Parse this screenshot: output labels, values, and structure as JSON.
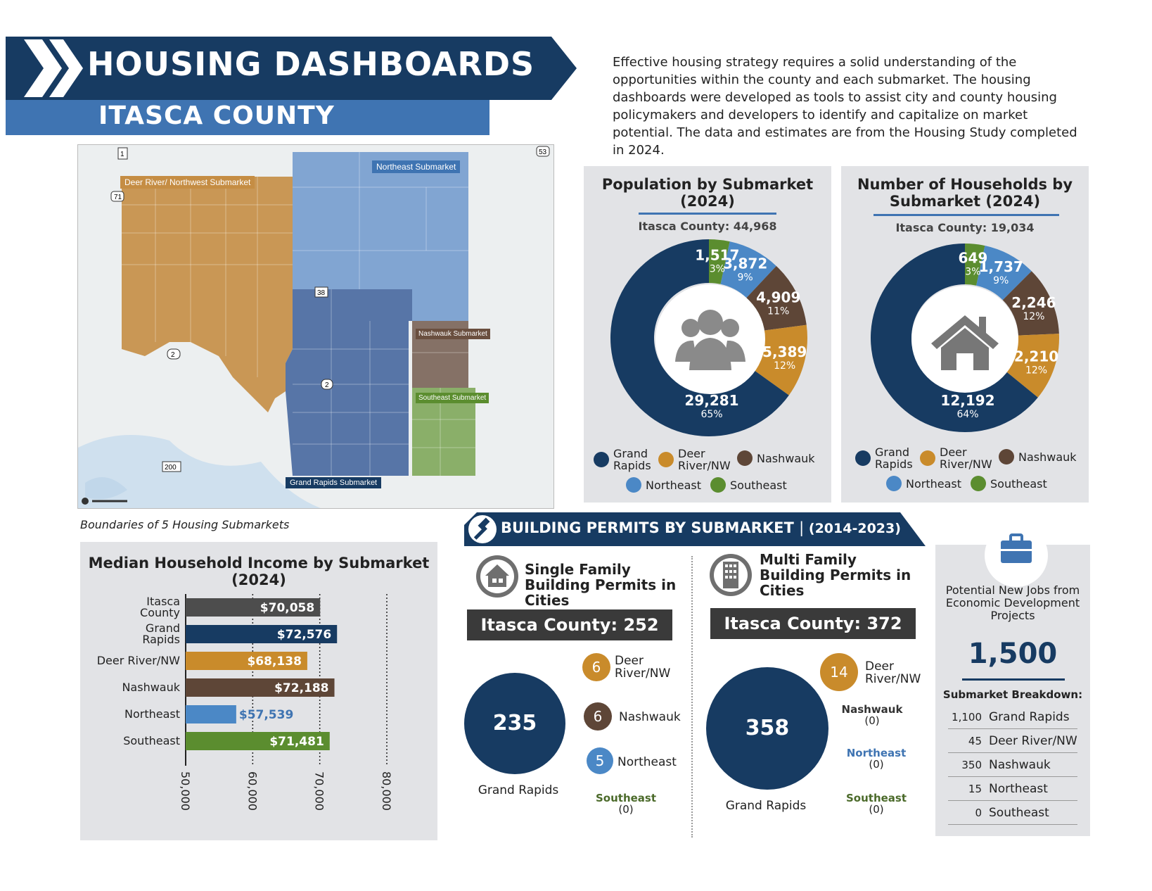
{
  "header": {
    "title": "HOUSING DASHBOARDS",
    "subtitle": "ITASCA COUNTY",
    "intro": "Effective housing strategy requires a solid understanding of the opportunities within the county and each submarket. The housing dashboards were developed as tools to assist city and county housing policymakers and developers to identify and capitalize on market potential. The data and estimates are from the Housing Study completed in 2024."
  },
  "map": {
    "caption": "Boundaries of 5 Housing Submarkets",
    "labels": {
      "deer_river": "Deer River/ Northwest Submarket",
      "northeast": "Northeast Submarket",
      "nashwauk": "Nashwauk Submarket",
      "southeast": "Southeast Submarket",
      "grand_rapids": "Grand Rapids Submarket"
    },
    "route_labels": [
      "1",
      "71",
      "53",
      "38",
      "2",
      "2",
      "200"
    ]
  },
  "colors": {
    "grand_rapids": "#173b62",
    "deer_river": "#c98b2b",
    "nashwauk": "#5e4637",
    "northeast": "#4b88c6",
    "southeast": "#5b8d2f",
    "county": "#4d4d4d",
    "header_dark": "#173b62",
    "header_blue": "#3f74b2"
  },
  "population": {
    "title": "Population by Submarket (2024)",
    "total_label": "Itasca County: 44,968",
    "slices": [
      {
        "key": "grand_rapids",
        "value": "29,281",
        "pct": "65%",
        "share": 65.1
      },
      {
        "key": "deer_river",
        "value": "5,389",
        "pct": "12%",
        "share": 12.0
      },
      {
        "key": "nashwauk",
        "value": "4,909",
        "pct": "11%",
        "share": 10.9
      },
      {
        "key": "northeast",
        "value": "3,872",
        "pct": "9%",
        "share": 8.6
      },
      {
        "key": "southeast",
        "value": "1,517",
        "pct": "3%",
        "share": 3.4
      }
    ],
    "legend": [
      "Grand Rapids",
      "Deer River/NW",
      "Nashwauk",
      "Northeast",
      "Southeast"
    ]
  },
  "households": {
    "title": "Number of Households by Submarket (2024)",
    "total_label": "Itasca County: 19,034",
    "slices": [
      {
        "key": "grand_rapids",
        "value": "12,192",
        "pct": "64%",
        "share": 64.1
      },
      {
        "key": "deer_river",
        "value": "2,210",
        "pct": "12%",
        "share": 11.6
      },
      {
        "key": "nashwauk",
        "value": "2,246",
        "pct": "12%",
        "share": 11.8
      },
      {
        "key": "northeast",
        "value": "1,737",
        "pct": "9%",
        "share": 9.1
      },
      {
        "key": "southeast",
        "value": "649",
        "pct": "3%",
        "share": 3.4
      }
    ],
    "legend": [
      "Grand Rapids",
      "Deer River/NW",
      "Nashwauk",
      "Northeast",
      "Southeast"
    ]
  },
  "chart_data": {
    "type": "bar",
    "title": "Median Household Income by Submarket (2024)",
    "categories": [
      "Itasca County",
      "Grand Rapids",
      "Deer River/NW",
      "Nashwauk",
      "Northeast",
      "Southeast"
    ],
    "values": [
      70058,
      72576,
      68138,
      72188,
      57539,
      71481
    ],
    "value_labels": [
      "$70,058",
      "$72,576",
      "$68,138",
      "$72,188",
      "$57,539",
      "$71,481"
    ],
    "xlim": [
      50000,
      80000
    ],
    "ticks": [
      "50,000",
      "60,000",
      "70,000",
      "80,000"
    ],
    "tick_values": [
      50000,
      60000,
      70000,
      80000
    ],
    "orientation": "horizontal",
    "grid": true
  },
  "permits": {
    "title": "BUILDING PERMITS BY SUBMARKET",
    "years": "(2014-2023)",
    "single": {
      "heading": "Single Family Building Permits in Cities",
      "county": "Itasca County: 252",
      "big_value": "235",
      "big_label": "Grand Rapids",
      "items": [
        {
          "value": "6",
          "label": "Deer River/NW"
        },
        {
          "value": "6",
          "label": "Nashwauk"
        },
        {
          "value": "5",
          "label": "Northeast"
        }
      ],
      "southeast_label": "Southeast",
      "southeast_value": "(0)"
    },
    "multi": {
      "heading": "Multi Family Building Permits in Cities",
      "county": "Itasca County: 372",
      "big_value": "358",
      "big_label": "Grand Rapids",
      "deer_value": "14",
      "deer_label": "Deer River/NW",
      "zeros": [
        {
          "label": "Nashwauk",
          "value": "(0)"
        },
        {
          "label": "Northeast",
          "value": "(0)"
        },
        {
          "label": "Southeast",
          "value": "(0)"
        }
      ]
    }
  },
  "jobs": {
    "label": "Potential New Jobs from Economic Development Projects",
    "value": "1,500",
    "breakdown_title": "Submarket Breakdown:",
    "rows": [
      {
        "n": "1,100",
        "name": "Grand Rapids"
      },
      {
        "n": "45",
        "name": "Deer River/NW"
      },
      {
        "n": "350",
        "name": "Nashwauk"
      },
      {
        "n": "15",
        "name": "Northeast"
      },
      {
        "n": "0",
        "name": "Southeast"
      }
    ]
  }
}
